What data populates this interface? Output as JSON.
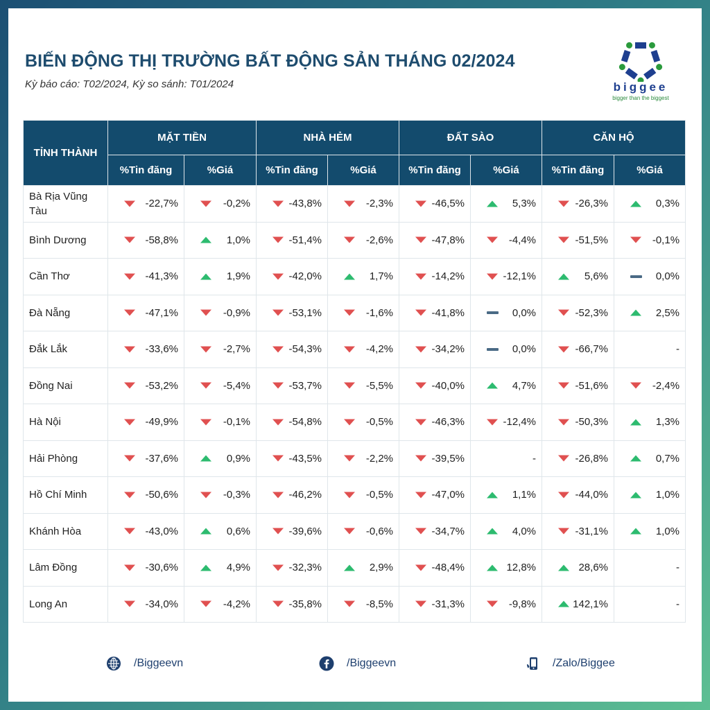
{
  "header": {
    "title": "BIẾN ĐỘNG THỊ TRƯỜNG BẤT ĐỘNG SẢN THÁNG 02/2024",
    "subtitle": "Kỳ báo cáo: T02/2024, Kỳ so sánh: T01/2024"
  },
  "logo": {
    "text": "biggee",
    "tagline": "bigger than the biggest"
  },
  "colors": {
    "header_bg": "#134b6d",
    "down": "#e05050",
    "up": "#2dbb6f",
    "flat": "#4a6a85"
  },
  "table": {
    "province_header": "TỈNH THÀNH",
    "groups": [
      "MẶT TIỀN",
      "NHÀ HẺM",
      "ĐẤT SÀO",
      "CĂN HỘ"
    ],
    "subheaders": [
      "%Tin đăng",
      "%Giá"
    ],
    "rows": [
      {
        "province": "Bà Rịa Vũng Tàu",
        "cells": [
          [
            "down",
            "-22,7%"
          ],
          [
            "down",
            "-0,2%"
          ],
          [
            "down",
            "-43,8%"
          ],
          [
            "down",
            "-2,3%"
          ],
          [
            "down",
            "-46,5%"
          ],
          [
            "up",
            "5,3%"
          ],
          [
            "down",
            "-26,3%"
          ],
          [
            "up",
            "0,3%"
          ]
        ]
      },
      {
        "province": "Bình Dương",
        "cells": [
          [
            "down",
            "-58,8%"
          ],
          [
            "up",
            "1,0%"
          ],
          [
            "down",
            "-51,4%"
          ],
          [
            "down",
            "-2,6%"
          ],
          [
            "down",
            "-47,8%"
          ],
          [
            "down",
            "-4,4%"
          ],
          [
            "down",
            "-51,5%"
          ],
          [
            "down",
            "-0,1%"
          ]
        ]
      },
      {
        "province": "Cần Thơ",
        "cells": [
          [
            "down",
            "-41,3%"
          ],
          [
            "up",
            "1,9%"
          ],
          [
            "down",
            "-42,0%"
          ],
          [
            "up",
            "1,7%"
          ],
          [
            "down",
            "-14,2%"
          ],
          [
            "down",
            "-12,1%"
          ],
          [
            "up",
            "5,6%"
          ],
          [
            "flat",
            "0,0%"
          ]
        ]
      },
      {
        "province": "Đà Nẵng",
        "cells": [
          [
            "down",
            "-47,1%"
          ],
          [
            "down",
            "-0,9%"
          ],
          [
            "down",
            "-53,1%"
          ],
          [
            "down",
            "-1,6%"
          ],
          [
            "down",
            "-41,8%"
          ],
          [
            "flat",
            "0,0%"
          ],
          [
            "down",
            "-52,3%"
          ],
          [
            "up",
            "2,5%"
          ]
        ]
      },
      {
        "province": "Đắk Lắk",
        "cells": [
          [
            "down",
            "-33,6%"
          ],
          [
            "down",
            "-2,7%"
          ],
          [
            "down",
            "-54,3%"
          ],
          [
            "down",
            "-4,2%"
          ],
          [
            "down",
            "-34,2%"
          ],
          [
            "flat",
            "0,0%"
          ],
          [
            "down",
            "-66,7%"
          ],
          [
            "none",
            "-"
          ]
        ]
      },
      {
        "province": "Đồng Nai",
        "cells": [
          [
            "down",
            "-53,2%"
          ],
          [
            "down",
            "-5,4%"
          ],
          [
            "down",
            "-53,7%"
          ],
          [
            "down",
            "-5,5%"
          ],
          [
            "down",
            "-40,0%"
          ],
          [
            "up",
            "4,7%"
          ],
          [
            "down",
            "-51,6%"
          ],
          [
            "down",
            "-2,4%"
          ]
        ]
      },
      {
        "province": "Hà Nội",
        "cells": [
          [
            "down",
            "-49,9%"
          ],
          [
            "down",
            "-0,1%"
          ],
          [
            "down",
            "-54,8%"
          ],
          [
            "down",
            "-0,5%"
          ],
          [
            "down",
            "-46,3%"
          ],
          [
            "down",
            "-12,4%"
          ],
          [
            "down",
            "-50,3%"
          ],
          [
            "up",
            "1,3%"
          ]
        ]
      },
      {
        "province": "Hải Phòng",
        "cells": [
          [
            "down",
            "-37,6%"
          ],
          [
            "up",
            "0,9%"
          ],
          [
            "down",
            "-43,5%"
          ],
          [
            "down",
            "-2,2%"
          ],
          [
            "down",
            "-39,5%"
          ],
          [
            "none",
            "-"
          ],
          [
            "down",
            "-26,8%"
          ],
          [
            "up",
            "0,7%"
          ]
        ]
      },
      {
        "province": "Hồ Chí Minh",
        "cells": [
          [
            "down",
            "-50,6%"
          ],
          [
            "down",
            "-0,3%"
          ],
          [
            "down",
            "-46,2%"
          ],
          [
            "down",
            "-0,5%"
          ],
          [
            "down",
            "-47,0%"
          ],
          [
            "up",
            "1,1%"
          ],
          [
            "down",
            "-44,0%"
          ],
          [
            "up",
            "1,0%"
          ]
        ]
      },
      {
        "province": "Khánh Hòa",
        "cells": [
          [
            "down",
            "-43,0%"
          ],
          [
            "up",
            "0,6%"
          ],
          [
            "down",
            "-39,6%"
          ],
          [
            "down",
            "-0,6%"
          ],
          [
            "down",
            "-34,7%"
          ],
          [
            "up",
            "4,0%"
          ],
          [
            "down",
            "-31,1%"
          ],
          [
            "up",
            "1,0%"
          ]
        ]
      },
      {
        "province": "Lâm Đồng",
        "cells": [
          [
            "down",
            "-30,6%"
          ],
          [
            "up",
            "4,9%"
          ],
          [
            "down",
            "-32,3%"
          ],
          [
            "up",
            "2,9%"
          ],
          [
            "down",
            "-48,4%"
          ],
          [
            "up",
            "12,8%"
          ],
          [
            "up",
            "28,6%"
          ],
          [
            "none",
            "-"
          ]
        ]
      },
      {
        "province": "Long An",
        "cells": [
          [
            "down",
            "-34,0%"
          ],
          [
            "down",
            "-4,2%"
          ],
          [
            "down",
            "-35,8%"
          ],
          [
            "down",
            "-8,5%"
          ],
          [
            "down",
            "-31,3%"
          ],
          [
            "down",
            "-9,8%"
          ],
          [
            "up",
            "142,1%"
          ],
          [
            "none",
            "-"
          ]
        ]
      }
    ]
  },
  "footer": {
    "website": "/Biggeevn",
    "facebook": "/Biggeevn",
    "zalo": "/Zalo/Biggee"
  }
}
